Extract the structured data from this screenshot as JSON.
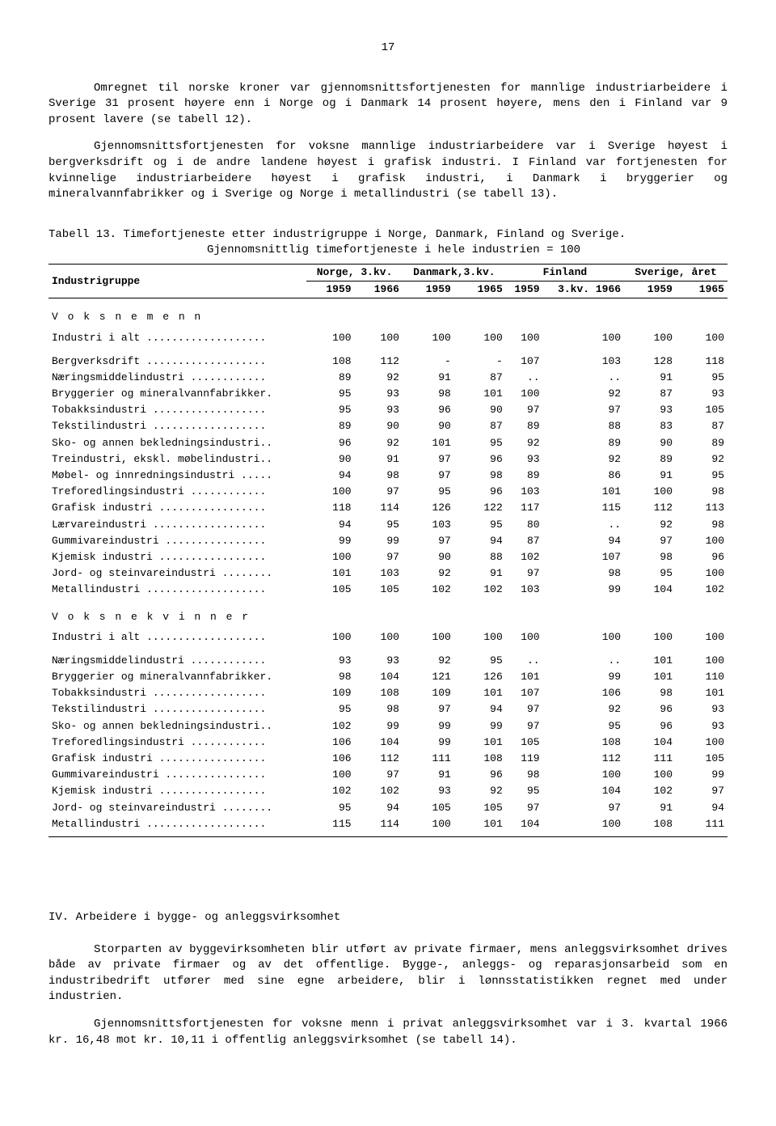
{
  "page_number": "17",
  "para1": "Omregnet til norske kroner var gjennomsnittsfortjenesten for mannlige industriarbeidere i Sverige 31 prosent høyere enn i Norge og i Danmark 14 prosent høyere, mens den i Finland var 9 prosent lavere (se tabell 12).",
  "para2": "Gjennomsnittsfortjenesten for voksne mannlige industriarbeidere var i Sverige høyest i bergverksdrift og i de andre landene høyest i grafisk industri. I Finland var fortjenesten for kvinnelige industriarbeidere høyest i grafisk industri, i Danmark i bryggerier og mineralvannfabrikker og i Sverige og Norge i metallindustri  (se tabell 13).",
  "table_title_a": "Tabell 13.  Timefortjeneste etter industrigruppe i Norge, Danmark, Finland og Sverige.",
  "table_title_b": "Gjennomsnittlig timefortjeneste i hele industrien = 100",
  "col_group": "Industrigruppe",
  "col_norge": "Norge, 3.kv.",
  "col_danmark": "Danmark,3.kv.",
  "col_finland": "Finland",
  "col_sverige": "Sverige, året",
  "y59": "1959",
  "y66": "1966",
  "y65": "1965",
  "fin66": "3.kv. 1966",
  "sect_men": "V o k s n e   m e n n",
  "sect_women": "V o k s n e   k v i n n e r",
  "rows_men": [
    {
      "l": "Industri i alt ...................",
      "v": [
        "100",
        "100",
        "100",
        "100",
        "100",
        "100",
        "100",
        "100"
      ]
    },
    {
      "l": "Bergverksdrift ...................",
      "v": [
        "108",
        "112",
        "-",
        "-",
        "107",
        "103",
        "128",
        "118"
      ]
    },
    {
      "l": "Næringsmiddelindustri ............",
      "v": [
        "89",
        "92",
        "91",
        "87",
        "..",
        "..",
        "91",
        "95"
      ]
    },
    {
      "l": "Bryggerier og mineralvannfabrikker.",
      "v": [
        "95",
        "93",
        "98",
        "101",
        "100",
        "92",
        "87",
        "93"
      ]
    },
    {
      "l": "Tobakksindustri ..................",
      "v": [
        "95",
        "93",
        "96",
        "90",
        "97",
        "97",
        "93",
        "105"
      ]
    },
    {
      "l": "Tekstilindustri ..................",
      "v": [
        "89",
        "90",
        "90",
        "87",
        "89",
        "88",
        "83",
        "87"
      ]
    },
    {
      "l": "Sko- og annen bekledningsindustri..",
      "v": [
        "96",
        "92",
        "101",
        "95",
        "92",
        "89",
        "90",
        "89"
      ]
    },
    {
      "l": "Treindustri, ekskl. møbelindustri..",
      "v": [
        "90",
        "91",
        "97",
        "96",
        "93",
        "92",
        "89",
        "92"
      ]
    },
    {
      "l": "Møbel- og innredningsindustri .....",
      "v": [
        "94",
        "98",
        "97",
        "98",
        "89",
        "86",
        "91",
        "95"
      ]
    },
    {
      "l": "Treforedlingsindustri ............",
      "v": [
        "100",
        "97",
        "95",
        "96",
        "103",
        "101",
        "100",
        "98"
      ]
    },
    {
      "l": "Grafisk industri .................",
      "v": [
        "118",
        "114",
        "126",
        "122",
        "117",
        "115",
        "112",
        "113"
      ]
    },
    {
      "l": "Lærvareindustri ..................",
      "v": [
        "94",
        "95",
        "103",
        "95",
        "80",
        "..",
        "92",
        "98"
      ]
    },
    {
      "l": "Gummivareindustri ................",
      "v": [
        "99",
        "99",
        "97",
        "94",
        "87",
        "94",
        "97",
        "100"
      ]
    },
    {
      "l": "Kjemisk industri .................",
      "v": [
        "100",
        "97",
        "90",
        "88",
        "102",
        "107",
        "98",
        "96"
      ]
    },
    {
      "l": "Jord- og steinvareindustri ........",
      "v": [
        "101",
        "103",
        "92",
        "91",
        "97",
        "98",
        "95",
        "100"
      ]
    },
    {
      "l": "Metallindustri ...................",
      "v": [
        "105",
        "105",
        "102",
        "102",
        "103",
        "99",
        "104",
        "102"
      ]
    }
  ],
  "rows_women": [
    {
      "l": "Industri i alt ...................",
      "v": [
        "100",
        "100",
        "100",
        "100",
        "100",
        "100",
        "100",
        "100"
      ]
    },
    {
      "l": "Næringsmiddelindustri ............",
      "v": [
        "93",
        "93",
        "92",
        "95",
        "..",
        "..",
        "101",
        "100"
      ]
    },
    {
      "l": "Bryggerier og mineralvannfabrikker.",
      "v": [
        "98",
        "104",
        "121",
        "126",
        "101",
        "99",
        "101",
        "110"
      ]
    },
    {
      "l": "Tobakksindustri ..................",
      "v": [
        "109",
        "108",
        "109",
        "101",
        "107",
        "106",
        "98",
        "101"
      ]
    },
    {
      "l": "Tekstilindustri ..................",
      "v": [
        "95",
        "98",
        "97",
        "94",
        "97",
        "92",
        "96",
        "93"
      ]
    },
    {
      "l": "Sko- og annen bekledningsindustri..",
      "v": [
        "102",
        "99",
        "99",
        "99",
        "97",
        "95",
        "96",
        "93"
      ]
    },
    {
      "l": "Treforedlingsindustri ............",
      "v": [
        "106",
        "104",
        "99",
        "101",
        "105",
        "108",
        "104",
        "100"
      ]
    },
    {
      "l": "Grafisk industri .................",
      "v": [
        "106",
        "112",
        "111",
        "108",
        "119",
        "112",
        "111",
        "105"
      ]
    },
    {
      "l": "Gummivareindustri ................",
      "v": [
        "100",
        "97",
        "91",
        "96",
        "98",
        "100",
        "100",
        "99"
      ]
    },
    {
      "l": "Kjemisk industri .................",
      "v": [
        "102",
        "102",
        "93",
        "92",
        "95",
        "104",
        "102",
        "97"
      ]
    },
    {
      "l": "Jord- og steinvareindustri ........",
      "v": [
        "95",
        "94",
        "105",
        "105",
        "97",
        "97",
        "91",
        "94"
      ]
    },
    {
      "l": "Metallindustri ...................",
      "v": [
        "115",
        "114",
        "100",
        "101",
        "104",
        "100",
        "108",
        "111"
      ]
    }
  ],
  "section4": "IV.  Arbeidere i bygge- og anleggsvirksomhet",
  "para3": "Storparten av byggevirksomheten blir utført av private firmaer, mens anleggsvirksomhet drives både av private firmaer og av det offentlige. Bygge-, anleggs- og reparasjonsarbeid som en industribedrift utfører med sine egne arbeidere, blir i lønnsstatistikken regnet med under industrien.",
  "para4": "Gjennomsnittsfortjenesten for voksne menn i privat anleggsvirksomhet var i 3. kvartal 1966 kr. 16,48 mot kr. 10,11 i offentlig anleggsvirksomhet (se tabell 14)."
}
